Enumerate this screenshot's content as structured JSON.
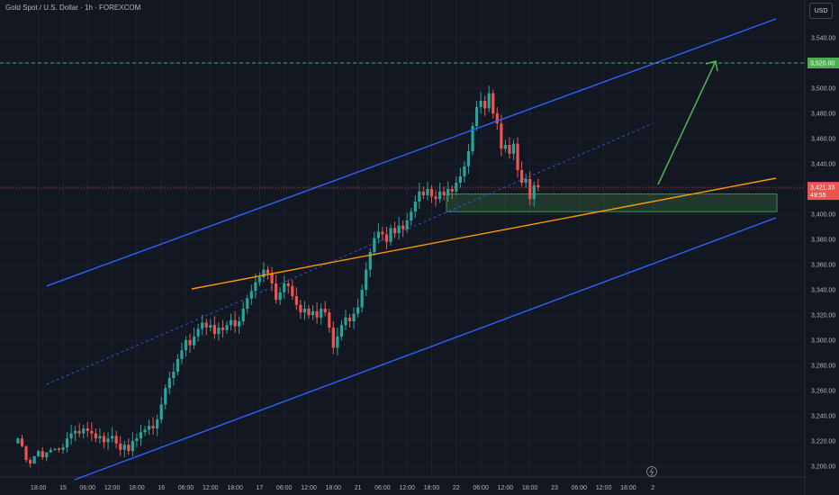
{
  "header": {
    "title": "Gold Spot / U.S. Dollar · 1h · FOREXCOM",
    "currency_button": "USD"
  },
  "colors": {
    "background": "#131722",
    "up": "#26a69a",
    "down": "#ef5350",
    "channel": "#2962ff",
    "trendline": "#ff9800",
    "target_line": "#4caf50",
    "zone": "#4caf50"
  },
  "price_tags": {
    "target": "3,520.00",
    "current": "3,421.33",
    "countdown": "49:55"
  },
  "icons": {
    "bottom": "lightning-icon"
  },
  "chart_data": {
    "type": "candlestick",
    "title": "Gold Spot / U.S. Dollar · 1h · FOREXCOM",
    "ylim": [
      3190,
      3560
    ],
    "y_ticks": [
      "3,200.00",
      "3,220.00",
      "3,240.00",
      "3,260.00",
      "3,280.00",
      "3,300.00",
      "3,320.00",
      "3,340.00",
      "3,360.00",
      "3,380.00",
      "3,400.00",
      "3,420.00",
      "3,440.00",
      "3,460.00",
      "3,480.00",
      "3,500.00",
      "3,520.00",
      "3,540.00"
    ],
    "y_tick_values": [
      3200,
      3220,
      3240,
      3260,
      3280,
      3300,
      3320,
      3340,
      3360,
      3380,
      3400,
      3420,
      3440,
      3460,
      3480,
      3500,
      3520,
      3540
    ],
    "x_ticks": [
      "18:00",
      "15",
      "06:00",
      "12:00",
      "18:00",
      "16",
      "06:00",
      "12:00",
      "18:00",
      "17",
      "06:00",
      "12:00",
      "18:00",
      "21",
      "06:00",
      "12:00",
      "18:00",
      "22",
      "06:00",
      "12:00",
      "18:00",
      "23",
      "06:00",
      "12:00",
      "18:00",
      "2"
    ],
    "x_tick_hours": [
      -6,
      0,
      6,
      12,
      18,
      24,
      30,
      36,
      42,
      48,
      54,
      60,
      66,
      72,
      78,
      84,
      90,
      96,
      102,
      108,
      114,
      120,
      126,
      132,
      138,
      144
    ],
    "grid": true,
    "candles_hourly": [
      {
        "h": -11,
        "c": 3222
      },
      {
        "h": -10,
        "c": 3216
      },
      {
        "h": -9,
        "c": 3205
      },
      {
        "h": -8,
        "c": 3202
      },
      {
        "h": -7,
        "c": 3208
      },
      {
        "h": -6,
        "c": 3212
      },
      {
        "h": -5,
        "c": 3207
      },
      {
        "h": -4,
        "c": 3211
      },
      {
        "h": -3,
        "c": 3213
      },
      {
        "h": -2,
        "c": 3214
      },
      {
        "h": -1,
        "c": 3213
      },
      {
        "h": 0,
        "c": 3215
      },
      {
        "h": 1,
        "c": 3222
      },
      {
        "h": 2,
        "c": 3226
      },
      {
        "h": 3,
        "c": 3228
      },
      {
        "h": 4,
        "c": 3226
      },
      {
        "h": 5,
        "c": 3230
      },
      {
        "h": 6,
        "c": 3228
      },
      {
        "h": 7,
        "c": 3226
      },
      {
        "h": 8,
        "c": 3222
      },
      {
        "h": 9,
        "c": 3224
      },
      {
        "h": 10,
        "c": 3219
      },
      {
        "h": 11,
        "c": 3222
      },
      {
        "h": 12,
        "c": 3224
      },
      {
        "h": 13,
        "c": 3218
      },
      {
        "h": 14,
        "c": 3213
      },
      {
        "h": 15,
        "c": 3217
      },
      {
        "h": 16,
        "c": 3212
      },
      {
        "h": 17,
        "c": 3220
      },
      {
        "h": 18,
        "c": 3222
      },
      {
        "h": 19,
        "c": 3227
      },
      {
        "h": 20,
        "c": 3229
      },
      {
        "h": 21,
        "c": 3232
      },
      {
        "h": 22,
        "c": 3230
      },
      {
        "h": 23,
        "c": 3237
      },
      {
        "h": 24,
        "c": 3249
      },
      {
        "h": 25,
        "c": 3262
      },
      {
        "h": 26,
        "c": 3270
      },
      {
        "h": 27,
        "c": 3275
      },
      {
        "h": 28,
        "c": 3285
      },
      {
        "h": 29,
        "c": 3292
      },
      {
        "h": 30,
        "c": 3300
      },
      {
        "h": 31,
        "c": 3296
      },
      {
        "h": 32,
        "c": 3303
      },
      {
        "h": 33,
        "c": 3309
      },
      {
        "h": 34,
        "c": 3314
      },
      {
        "h": 35,
        "c": 3310
      },
      {
        "h": 36,
        "c": 3312
      },
      {
        "h": 37,
        "c": 3305
      },
      {
        "h": 38,
        "c": 3310
      },
      {
        "h": 39,
        "c": 3308
      },
      {
        "h": 40,
        "c": 3312
      },
      {
        "h": 41,
        "c": 3316
      },
      {
        "h": 42,
        "c": 3311
      },
      {
        "h": 43,
        "c": 3315
      },
      {
        "h": 44,
        "c": 3325
      },
      {
        "h": 45,
        "c": 3333
      },
      {
        "h": 46,
        "c": 3339
      },
      {
        "h": 47,
        "c": 3346
      },
      {
        "h": 48,
        "c": 3350
      },
      {
        "h": 49,
        "c": 3356
      },
      {
        "h": 50,
        "c": 3353
      },
      {
        "h": 51,
        "c": 3345
      },
      {
        "h": 52,
        "c": 3332
      },
      {
        "h": 53,
        "c": 3338
      },
      {
        "h": 54,
        "c": 3345
      },
      {
        "h": 55,
        "c": 3343
      },
      {
        "h": 56,
        "c": 3335
      },
      {
        "h": 57,
        "c": 3328
      },
      {
        "h": 58,
        "c": 3322
      },
      {
        "h": 59,
        "c": 3325
      },
      {
        "h": 60,
        "c": 3320
      },
      {
        "h": 61,
        "c": 3323
      },
      {
        "h": 62,
        "c": 3318
      },
      {
        "h": 63,
        "c": 3325
      },
      {
        "h": 64,
        "c": 3322
      },
      {
        "h": 65,
        "c": 3310
      },
      {
        "h": 66,
        "c": 3294
      },
      {
        "h": 67,
        "c": 3303
      },
      {
        "h": 68,
        "c": 3312
      },
      {
        "h": 69,
        "c": 3318
      },
      {
        "h": 70,
        "c": 3315
      },
      {
        "h": 71,
        "c": 3321
      },
      {
        "h": 72,
        "c": 3326
      },
      {
        "h": 73,
        "c": 3340
      },
      {
        "h": 74,
        "c": 3356
      },
      {
        "h": 75,
        "c": 3370
      },
      {
        "h": 76,
        "c": 3381
      },
      {
        "h": 77,
        "c": 3386
      },
      {
        "h": 78,
        "c": 3384
      },
      {
        "h": 79,
        "c": 3378
      },
      {
        "h": 80,
        "c": 3389
      },
      {
        "h": 81,
        "c": 3385
      },
      {
        "h": 82,
        "c": 3391
      },
      {
        "h": 83,
        "c": 3388
      },
      {
        "h": 84,
        "c": 3395
      },
      {
        "h": 85,
        "c": 3402
      },
      {
        "h": 86,
        "c": 3410
      },
      {
        "h": 87,
        "c": 3418
      },
      {
        "h": 88,
        "c": 3415
      },
      {
        "h": 89,
        "c": 3420
      },
      {
        "h": 90,
        "c": 3414
      },
      {
        "h": 91,
        "c": 3412
      },
      {
        "h": 92,
        "c": 3418
      },
      {
        "h": 93,
        "c": 3415
      },
      {
        "h": 94,
        "c": 3420
      },
      {
        "h": 95,
        "c": 3418
      },
      {
        "h": 96,
        "c": 3425
      },
      {
        "h": 97,
        "c": 3430
      },
      {
        "h": 98,
        "c": 3438
      },
      {
        "h": 99,
        "c": 3450
      },
      {
        "h": 100,
        "c": 3470
      },
      {
        "h": 101,
        "c": 3485
      },
      {
        "h": 102,
        "c": 3490
      },
      {
        "h": 103,
        "c": 3484
      },
      {
        "h": 104,
        "c": 3496
      },
      {
        "h": 105,
        "c": 3480
      },
      {
        "h": 106,
        "c": 3472
      },
      {
        "h": 107,
        "c": 3452
      },
      {
        "h": 108,
        "c": 3455
      },
      {
        "h": 109,
        "c": 3448
      },
      {
        "h": 110,
        "c": 3456
      },
      {
        "h": 111,
        "c": 3435
      },
      {
        "h": 112,
        "c": 3425
      },
      {
        "h": 113,
        "c": 3428
      },
      {
        "h": 114,
        "c": 3412
      },
      {
        "h": 115,
        "c": 3423
      },
      {
        "h": 116,
        "c": 3421.33
      }
    ],
    "first_open": 3218,
    "annotations": {
      "target_level": 3520,
      "support_zone": [
        3402,
        3416
      ],
      "channel_upper": [
        [
          -4,
          3508
        ],
        [
          120,
          3518
        ]
      ],
      "channel_lower": [
        [
          6,
          3190
        ],
        [
          144,
          3410
        ]
      ],
      "trendline": [
        [
          30,
          3340
        ],
        [
          144,
          3426
        ]
      ],
      "mid_line_dashed": [
        [
          -4,
          3265
        ],
        [
          144,
          3472
        ]
      ],
      "arrow": [
        [
          117,
          3424
        ],
        [
          126,
          3516
        ]
      ]
    }
  }
}
